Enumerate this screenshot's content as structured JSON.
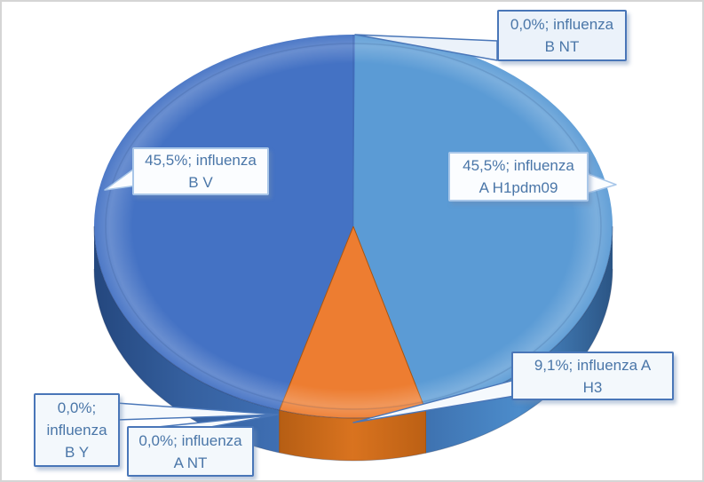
{
  "chart_data": {
    "type": "pie",
    "style": "3d-pie",
    "title": "",
    "legend": "none",
    "data_label_format": "percentage; category name",
    "decimal_separator": ",",
    "slices": [
      {
        "id": "a_h1pdm09",
        "label": "influenza A H1pdm09",
        "value_pct": 45.5,
        "color": "#5B9BD5",
        "wall_colors": [
          "#3E72B0",
          "#4C8CCB",
          "#2B5585"
        ]
      },
      {
        "id": "a_h3",
        "label": "influenza A H3",
        "value_pct": 9.1,
        "color": "#ED7D31",
        "wall_colors": [
          "#B65E14",
          "#D9731F",
          "#BC6014"
        ],
        "edge_stroke": "#A8540E"
      },
      {
        "id": "a_nt",
        "label": "influenza A NT",
        "value_pct": 0.0,
        "color": null
      },
      {
        "id": "b_y",
        "label": "influenza B Y",
        "value_pct": 0.0,
        "color": null
      },
      {
        "id": "b_v",
        "label": "influenza B V",
        "value_pct": 45.5,
        "color": "#4472C4",
        "wall_colors": [
          "#24477E",
          "#35609F",
          "#3F6FB3"
        ]
      },
      {
        "id": "b_nt",
        "label": "influenza B NT",
        "value_pct": 0.0,
        "color": null
      }
    ]
  },
  "callouts": {
    "b_nt": {
      "text": "0,0%; influenza\nB NT"
    },
    "a_h1pdm09": {
      "text": "45,5%; influenza\nA H1pdm09"
    },
    "a_h3": {
      "text": "9,1%; influenza A\nH3"
    },
    "a_nt": {
      "text": "0,0%; influenza\nA NT"
    },
    "b_y": {
      "text": "0,0%;\ninfluenza\nB Y"
    },
    "b_v": {
      "text": "45,5%; influenza\nB V"
    }
  },
  "colors": {
    "slice_light_blue": "#5B9BD5",
    "slice_orange": "#ED7D31",
    "slice_dark_blue": "#4472C4",
    "callout_border_strong": "#4976B8",
    "callout_border_light": "#A9C7E9",
    "callout_text": "#4A76A8",
    "chart_frame_border": "#D5D5D5"
  }
}
